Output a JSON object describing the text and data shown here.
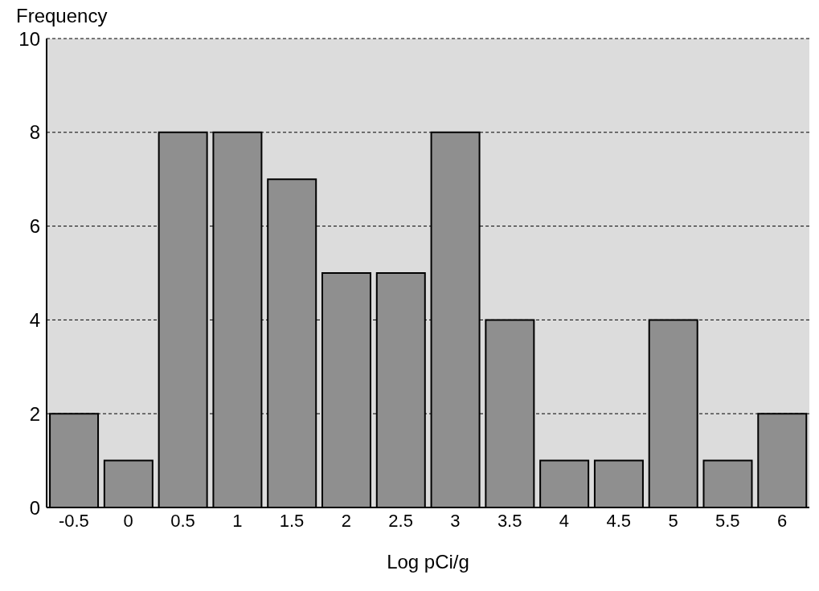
{
  "chart_data": {
    "type": "bar",
    "ylabel": "Frequency",
    "xlabel": "Log pCi/g",
    "categories": [
      "-0.5",
      "0",
      "0.5",
      "1",
      "1.5",
      "2",
      "2.5",
      "3",
      "3.5",
      "4",
      "4.5",
      "5",
      "5.5",
      "6"
    ],
    "values": [
      2,
      1,
      8,
      8,
      7,
      5,
      5,
      8,
      4,
      1,
      1,
      4,
      1,
      2
    ],
    "color": "#8f8f8f",
    "ylim": [
      0,
      10
    ],
    "yticks": [
      0,
      2,
      4,
      6,
      8,
      10
    ],
    "grid": "y"
  }
}
